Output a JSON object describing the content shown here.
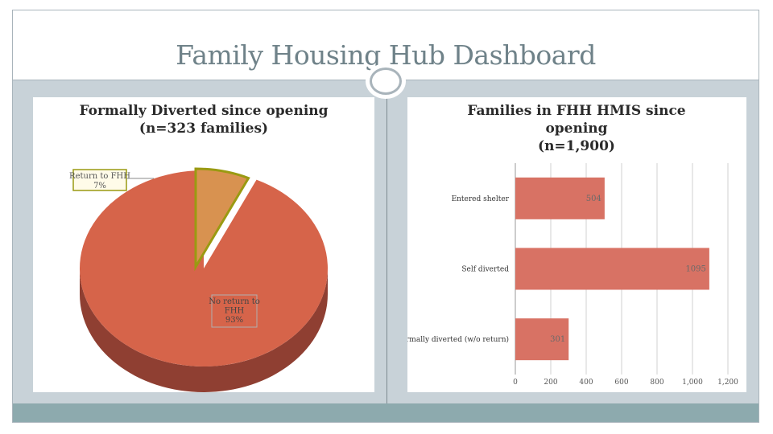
{
  "page": {
    "title": "Family Housing Hub Dashboard"
  },
  "colors": {
    "pie_main": "#d6644a",
    "pie_main_side": "#8f3f32",
    "pie_slice": "#d89250",
    "pie_slice_border": "#9a9a12",
    "bar": "#d87264",
    "frame": "#a9b4bb",
    "body_bg": "#c8d2d8",
    "footer": "#8daaae"
  },
  "chart_data": [
    {
      "type": "pie",
      "title": "Formally Diverted since opening\n(n=323 families)",
      "slices": [
        {
          "label": "No return to FHH",
          "percent_label": "93%",
          "value": 93
        },
        {
          "label": "Return to FHH",
          "percent_label": "7%",
          "value": 7
        }
      ],
      "data_labels": {
        "main": "No return to\nFHH\n93%",
        "small": "Return to FHH\n7%"
      }
    },
    {
      "type": "bar",
      "orientation": "horizontal",
      "title": "Families in FHH HMIS since\nopening\n(n=1,900)",
      "categories": [
        "Entered shelter",
        "Self diverted",
        "Formally diverted (w/o return)"
      ],
      "values": [
        504,
        1095,
        301
      ],
      "data_labels": [
        "504",
        "1095",
        "301"
      ],
      "xlim": [
        0,
        1200
      ],
      "ticks": [
        0,
        200,
        400,
        600,
        800,
        1000,
        1200
      ],
      "tick_labels": [
        "0",
        "200",
        "400",
        "600",
        "800",
        "1,000",
        "1,200"
      ],
      "grid": true
    }
  ]
}
